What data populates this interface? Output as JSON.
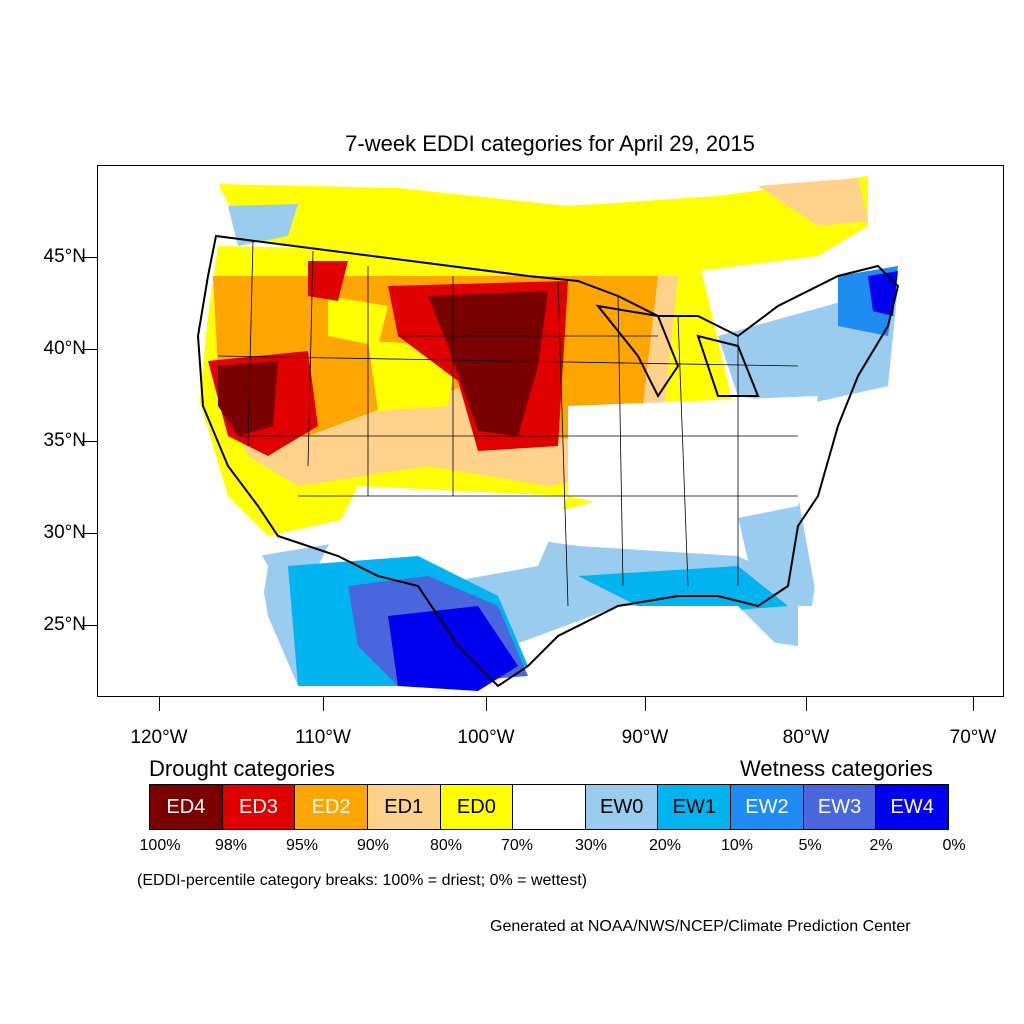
{
  "title": "7-week EDDI categories for April 29, 2015",
  "lat_labels": [
    "45°N",
    "40°N",
    "35°N",
    "30°N",
    "25°N"
  ],
  "lon_labels": [
    "120°W",
    "110°W",
    "100°W",
    "90°W",
    "80°W",
    "70°W"
  ],
  "legend": {
    "drought_heading": "Drought categories",
    "wetness_heading": "Wetness categories",
    "categories": [
      {
        "label": "ED4",
        "color": "#7a0000",
        "text_color": "#ffffff"
      },
      {
        "label": "ED3",
        "color": "#e00000",
        "text_color": "#ffffff"
      },
      {
        "label": "ED2",
        "color": "#ffa500",
        "text_color": "#ffffff"
      },
      {
        "label": "ED1",
        "color": "#ffd28c",
        "text_color": "#000000"
      },
      {
        "label": "ED0",
        "color": "#ffff00",
        "text_color": "#000000"
      },
      {
        "label": "",
        "color": "#ffffff",
        "text_color": "#000000"
      },
      {
        "label": "EW0",
        "color": "#99ccee",
        "text_color": "#000000"
      },
      {
        "label": "EW1",
        "color": "#00b4f0",
        "text_color": "#000000"
      },
      {
        "label": "EW2",
        "color": "#1e8cf0",
        "text_color": "#ffffff"
      },
      {
        "label": "EW3",
        "color": "#4a66dd",
        "text_color": "#ffffff"
      },
      {
        "label": "EW4",
        "color": "#0000f0",
        "text_color": "#ffffff"
      }
    ],
    "breaks": [
      "100%",
      "98%",
      "95%",
      "90%",
      "80%",
      "70%",
      "30%",
      "20%",
      "10%",
      "5%",
      "2%",
      "0%"
    ]
  },
  "break_note": "(EDDI-percentile category breaks: 100% = driest; 0% = wettest)",
  "credit": "Generated at NOAA/NWS/NCEP/Climate Prediction Center"
}
